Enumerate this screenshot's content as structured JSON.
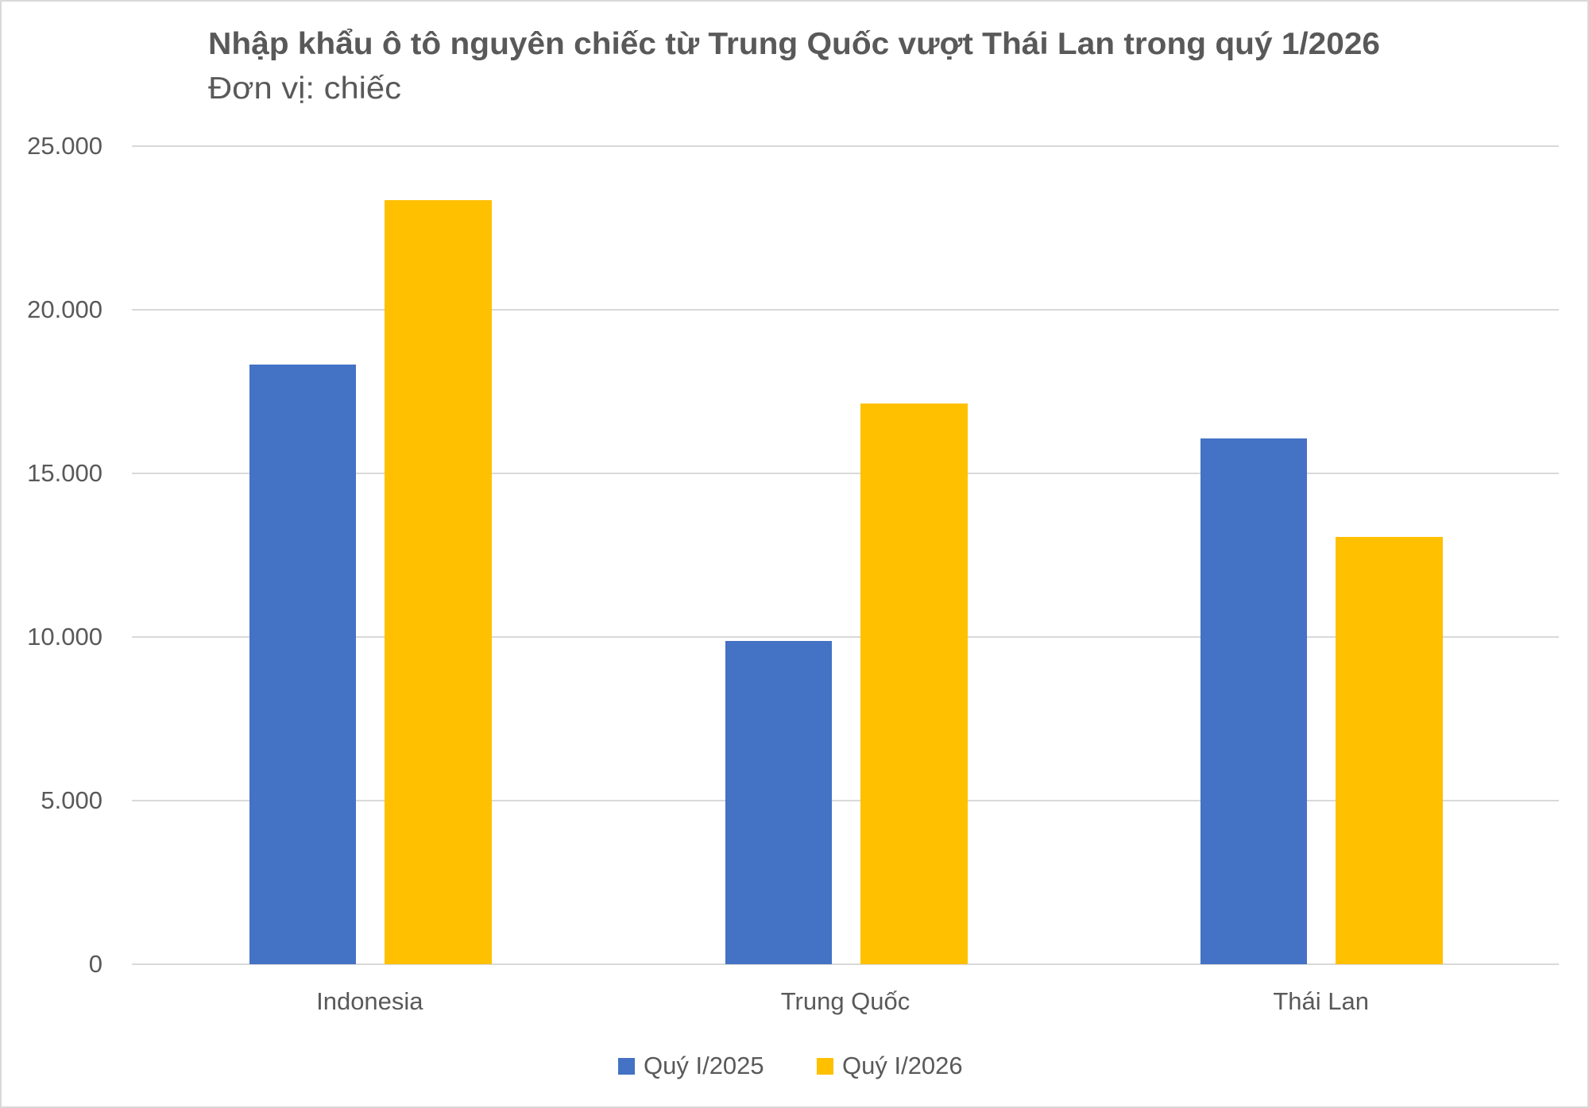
{
  "chart": {
    "title": "Nhập khẩu ô tô nguyên chiếc từ Trung Quốc vượt Thái Lan trong quý 1/2026",
    "subtitle": "Đơn vị: chiếc",
    "y_ticks": [
      "25.000",
      "20.000",
      "15.000",
      "10.000",
      "5.000",
      "0"
    ],
    "categories": [
      "Indonesia",
      "Trung Quốc",
      "Thái Lan"
    ],
    "legend": [
      {
        "label": "Quý I/2025",
        "color": "#4472C4"
      },
      {
        "label": "Quý I/2026",
        "color": "#FFC000"
      }
    ],
    "colors": {
      "series_2025": "#4472C4",
      "series_2026": "#FFC000",
      "text": "#595959",
      "gridline": "#D9D9D9"
    }
  },
  "chart_data": {
    "type": "bar",
    "title": "Nhập khẩu ô tô nguyên chiếc từ Trung Quốc vượt Thái Lan trong quý 1/2026",
    "subtitle": "Đơn vị: chiếc",
    "xlabel": "",
    "ylabel": "",
    "categories": [
      "Indonesia",
      "Trung Quốc",
      "Thái Lan"
    ],
    "series": [
      {
        "name": "Quý I/2025",
        "color": "#4472C4",
        "values": [
          18330,
          9890,
          16080
        ]
      },
      {
        "name": "Quý I/2026",
        "color": "#FFC000",
        "values": [
          23350,
          17140,
          13070
        ]
      }
    ],
    "ylim": [
      0,
      25000
    ],
    "yticks": [
      0,
      5000,
      10000,
      15000,
      20000,
      25000
    ],
    "ytick_labels": [
      "0",
      "5.000",
      "10.000",
      "15.000",
      "20.000",
      "25.000"
    ],
    "grid": true,
    "legend_position": "bottom"
  }
}
